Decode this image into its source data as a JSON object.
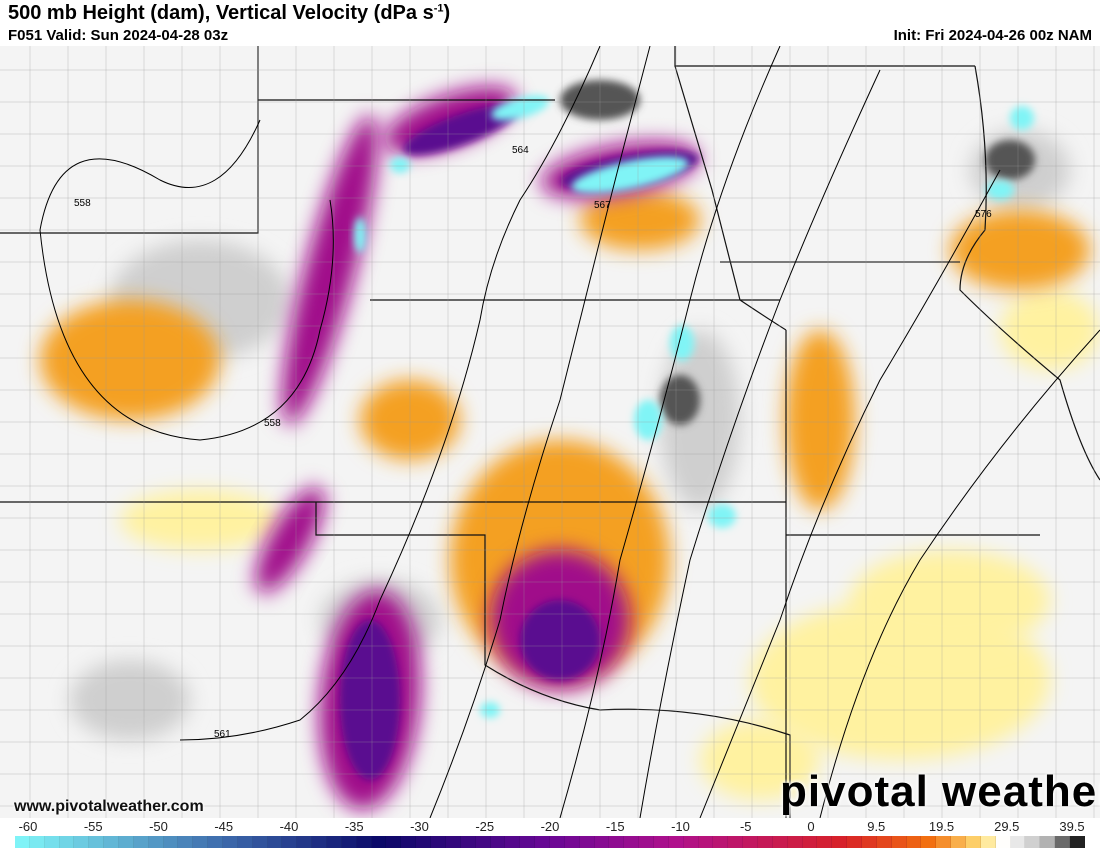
{
  "header": {
    "title": "500 mb Height (dam), Vertical Velocity (dPa s",
    "title_sup": "-1",
    "title_end": ")",
    "valid": "F051 Valid: Sun 2024-04-28 03z",
    "init": "Init: Fri 2024-04-26 00z NAM"
  },
  "map": {
    "contour_labels": [
      "558",
      "564",
      "567",
      "558",
      "561",
      "576"
    ],
    "watermark_site": "www.pivotalweather.com",
    "logo": "pivotal weather"
  },
  "colorbar": {
    "ticks": [
      "-60",
      "-55",
      "-50",
      "-45",
      "-40",
      "-35",
      "-30",
      "-25",
      "-20",
      "-15",
      "-10",
      "-5",
      "0",
      "9.5",
      "19.5",
      "29.5",
      "39.5"
    ],
    "colors": {
      "upward_strong": "#7ff3f7",
      "blue": "#3a64a8",
      "navy": "#0a0868",
      "purple": "#6a0896",
      "magenta": "#b0108c",
      "red": "#d82228",
      "orange": "#f27010",
      "yellow": "#ffe27a",
      "neutral": "#ffffff",
      "downward_strong": "#222222"
    }
  }
}
